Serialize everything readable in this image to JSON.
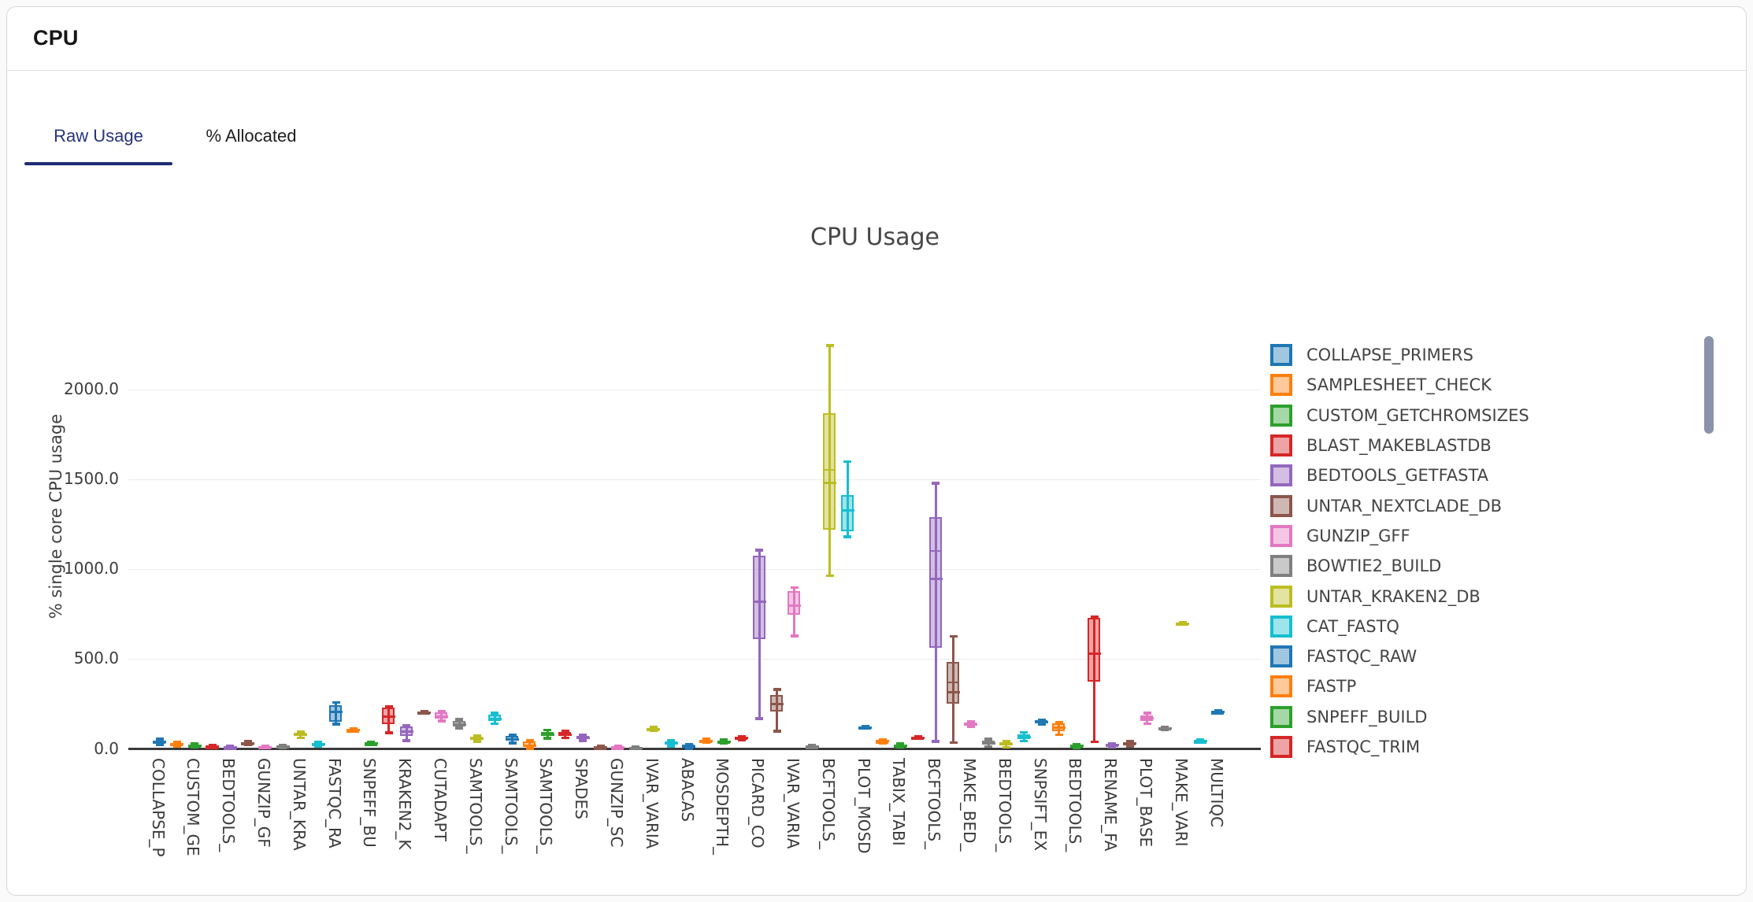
{
  "header": {
    "title": "CPU"
  },
  "tabs": [
    {
      "label": "Raw Usage",
      "active": true
    },
    {
      "label": "% Allocated",
      "active": false
    }
  ],
  "palette": {
    "blue": "#1f77b4",
    "orange": "#ff7f0e",
    "green": "#2ca02c",
    "red": "#d62728",
    "purple": "#9467bd",
    "brown": "#8c564b",
    "pink": "#e377c2",
    "gray": "#7f7f7f",
    "olive": "#bcbd22",
    "cyan": "#17becf"
  },
  "scrollbar_color": "#8a93ab",
  "chart_data": {
    "type": "boxplot",
    "title": "CPU Usage",
    "ylabel": "% single core CPU usage",
    "yticks": [
      {
        "value": 0,
        "label": "0.0"
      },
      {
        "value": 500,
        "label": "500.0"
      },
      {
        "value": 1000,
        "label": "1000.0"
      },
      {
        "value": 1500,
        "label": "1500.0"
      },
      {
        "value": 2000,
        "label": "2000.0"
      }
    ],
    "ylim": [
      0,
      2330
    ],
    "grid": true,
    "legend_position": "right",
    "x_labels": [
      "COLLAPSE_P",
      "CUSTOM_GE",
      "BEDTOOLS_",
      "GUNZIP_GF",
      "UNTAR_KRA",
      "FASTQC_RA",
      "SNPEFF_BU",
      "KRAKEN2_K",
      "CUTADAPT",
      "SAMTOOLS_",
      "SAMTOOLS_",
      "SAMTOOLS_",
      "SPADES",
      "GUNZIP_SC",
      "IVAR_VARIA",
      "ABACAS",
      "MOSDEPTH_",
      "PICARD_CO",
      "IVAR_VARIA",
      "BCFTOOLS_",
      "PLOT_MOSD",
      "TABIX_TABI",
      "BCFTOOLS_",
      "MAKE_BED_",
      "BEDTOOLS_",
      "SNPSIFT_EX",
      "BEDTOOLS_",
      "RENAME_FA",
      "PLOT_BASE",
      "MAKE_VARI",
      "MULTIQC"
    ],
    "boxes": [
      {
        "color": "blue",
        "low": 22,
        "q1": 33,
        "median": 40,
        "q3": 48,
        "high": 55
      },
      {
        "color": "orange",
        "low": 13,
        "q1": 20,
        "median": 26,
        "q3": 33,
        "high": 40
      },
      {
        "color": "green",
        "low": 8,
        "q1": 13,
        "median": 19,
        "q3": 25,
        "high": 30
      },
      {
        "color": "red",
        "low": 4,
        "q1": 8,
        "median": 12,
        "q3": 16,
        "high": 20
      },
      {
        "color": "purple",
        "low": 2,
        "q1": 5,
        "median": 9,
        "q3": 13,
        "high": 16
      },
      {
        "color": "brown",
        "low": 20,
        "q1": 26,
        "median": 32,
        "q3": 38,
        "high": 44
      },
      {
        "color": "pink",
        "low": 3,
        "q1": 6,
        "median": 10,
        "q3": 14,
        "high": 18
      },
      {
        "color": "gray",
        "low": 6,
        "q1": 10,
        "median": 15,
        "q3": 20,
        "high": 24
      },
      {
        "color": "olive",
        "low": 61,
        "q1": 70,
        "median": 79,
        "q3": 88,
        "high": 96
      },
      {
        "color": "cyan",
        "low": 13,
        "q1": 20,
        "median": 26,
        "q3": 33,
        "high": 40
      },
      {
        "color": "blue",
        "low": 136,
        "q1": 145,
        "median": 206,
        "q3": 241,
        "high": 259
      },
      {
        "color": "orange",
        "low": 99,
        "q1": 102,
        "median": 106,
        "q3": 109,
        "high": 112
      },
      {
        "color": "green",
        "low": 25,
        "q1": 28,
        "median": 31,
        "q3": 35,
        "high": 38
      },
      {
        "color": "red",
        "low": 88,
        "q1": 132,
        "median": 180,
        "q3": 228,
        "high": 237
      },
      {
        "color": "purple",
        "low": 44,
        "q1": 66,
        "median": 95,
        "q3": 123,
        "high": 130
      },
      {
        "color": "brown",
        "low": 195,
        "q1": 199,
        "median": 203,
        "q3": 207,
        "high": 211
      },
      {
        "color": "pink",
        "low": 154,
        "q1": 162,
        "median": 180,
        "q3": 202,
        "high": 210
      },
      {
        "color": "gray",
        "low": 114,
        "q1": 122,
        "median": 136,
        "q3": 155,
        "high": 165
      },
      {
        "color": "olive",
        "low": 40,
        "q1": 45,
        "median": 55,
        "q3": 68,
        "high": 75
      },
      {
        "color": "cyan",
        "low": 140,
        "q1": 150,
        "median": 166,
        "q3": 190,
        "high": 200
      },
      {
        "color": "blue",
        "low": 31,
        "q1": 40,
        "median": 53,
        "q3": 72,
        "high": 80
      },
      {
        "color": "orange",
        "low": 2,
        "q1": 6,
        "median": 19,
        "q3": 40,
        "high": 50
      },
      {
        "color": "green",
        "low": 58,
        "q1": 66,
        "median": 80,
        "q3": 95,
        "high": 107
      },
      {
        "color": "red",
        "low": 60,
        "q1": 66,
        "median": 77,
        "q3": 92,
        "high": 100
      },
      {
        "color": "purple",
        "low": 45,
        "q1": 50,
        "median": 63,
        "q3": 74,
        "high": 80
      },
      {
        "color": "brown",
        "low": 4,
        "q1": 7,
        "median": 10,
        "q3": 13,
        "high": 16
      },
      {
        "color": "pink",
        "low": 4,
        "q1": 7,
        "median": 10,
        "q3": 13,
        "high": 16
      },
      {
        "color": "gray",
        "low": 2,
        "q1": 4,
        "median": 6,
        "q3": 9,
        "high": 12
      },
      {
        "color": "olive",
        "low": 100,
        "q1": 105,
        "median": 111,
        "q3": 117,
        "high": 122
      },
      {
        "color": "cyan",
        "low": 15,
        "q1": 22,
        "median": 32,
        "q3": 42,
        "high": 50
      },
      {
        "color": "blue",
        "low": 1,
        "q1": 6,
        "median": 14,
        "q3": 22,
        "high": 28
      },
      {
        "color": "orange",
        "low": 35,
        "q1": 40,
        "median": 45,
        "q3": 52,
        "high": 58
      },
      {
        "color": "green",
        "low": 30,
        "q1": 35,
        "median": 41,
        "q3": 47,
        "high": 52
      },
      {
        "color": "red",
        "low": 48,
        "q1": 53,
        "median": 60,
        "q3": 67,
        "high": 72
      },
      {
        "color": "purple",
        "low": 168,
        "q1": 605,
        "median": 817,
        "q3": 1077,
        "high": 1106
      },
      {
        "color": "brown",
        "low": 98,
        "q1": 205,
        "median": 250,
        "q3": 298,
        "high": 332
      },
      {
        "color": "pink",
        "low": 627,
        "q1": 744,
        "median": 795,
        "q3": 876,
        "high": 898
      },
      {
        "color": "gray",
        "low": 4,
        "q1": 7,
        "median": 11,
        "q3": 16,
        "high": 20
      },
      {
        "color": "olive",
        "low": 962,
        "q1": 1215,
        "median": 1481,
        "q3": 1866,
        "high": 2245,
        "mean": 1551
      },
      {
        "color": "cyan",
        "low": 1180,
        "q1": 1205,
        "median": 1328,
        "q3": 1412,
        "high": 1600
      },
      {
        "color": "blue",
        "low": 112,
        "q1": 116,
        "median": 120,
        "q3": 124,
        "high": 128
      },
      {
        "color": "orange",
        "low": 30,
        "q1": 36,
        "median": 42,
        "q3": 48,
        "high": 54
      },
      {
        "color": "green",
        "low": 8,
        "q1": 13,
        "median": 19,
        "q3": 25,
        "high": 32
      },
      {
        "color": "red",
        "low": 55,
        "q1": 58,
        "median": 62,
        "q3": 66,
        "high": 70
      },
      {
        "color": "purple",
        "low": 40,
        "q1": 560,
        "median": 945,
        "q3": 1288,
        "high": 1478,
        "mean": 1100
      },
      {
        "color": "brown",
        "low": 35,
        "q1": 246,
        "median": 316,
        "q3": 482,
        "high": 627,
        "mean": 368
      },
      {
        "color": "pink",
        "low": 122,
        "q1": 128,
        "median": 136,
        "q3": 145,
        "high": 152
      },
      {
        "color": "gray",
        "low": 12,
        "q1": 20,
        "median": 30,
        "q3": 44,
        "high": 55
      },
      {
        "color": "olive",
        "low": 8,
        "q1": 15,
        "median": 25,
        "q3": 36,
        "high": 45
      },
      {
        "color": "cyan",
        "low": 43,
        "q1": 52,
        "median": 65,
        "q3": 80,
        "high": 92
      },
      {
        "color": "blue",
        "low": 136,
        "q1": 142,
        "median": 150,
        "q3": 158,
        "high": 164
      },
      {
        "color": "orange",
        "low": 77,
        "q1": 95,
        "median": 120,
        "q3": 143,
        "high": 149
      },
      {
        "color": "green",
        "low": 5,
        "q1": 10,
        "median": 17,
        "q3": 24,
        "high": 28
      },
      {
        "color": "red",
        "low": 39,
        "q1": 368,
        "median": 529,
        "q3": 727,
        "high": 736
      },
      {
        "color": "purple",
        "low": 10,
        "q1": 15,
        "median": 21,
        "q3": 27,
        "high": 32
      },
      {
        "color": "brown",
        "low": 15,
        "q1": 22,
        "median": 30,
        "q3": 38,
        "high": 45
      },
      {
        "color": "pink",
        "low": 139,
        "q1": 152,
        "median": 170,
        "q3": 188,
        "high": 200
      },
      {
        "color": "gray",
        "low": 104,
        "q1": 109,
        "median": 114,
        "q3": 119,
        "high": 124
      },
      {
        "color": "olive",
        "low": 690,
        "q1": 694,
        "median": 698,
        "q3": 702,
        "high": 706
      },
      {
        "color": "cyan",
        "low": 35,
        "q1": 39,
        "median": 43,
        "q3": 47,
        "high": 51
      },
      {
        "color": "blue",
        "low": 197,
        "q1": 201,
        "median": 205,
        "q3": 209,
        "high": 213
      }
    ],
    "legend": [
      {
        "color": "blue",
        "label": "COLLAPSE_PRIMERS"
      },
      {
        "color": "orange",
        "label": "SAMPLESHEET_CHECK"
      },
      {
        "color": "green",
        "label": "CUSTOM_GETCHROMSIZES"
      },
      {
        "color": "red",
        "label": "BLAST_MAKEBLASTDB"
      },
      {
        "color": "purple",
        "label": "BEDTOOLS_GETFASTA"
      },
      {
        "color": "brown",
        "label": "UNTAR_NEXTCLADE_DB"
      },
      {
        "color": "pink",
        "label": "GUNZIP_GFF"
      },
      {
        "color": "gray",
        "label": "BOWTIE2_BUILD"
      },
      {
        "color": "olive",
        "label": "UNTAR_KRAKEN2_DB"
      },
      {
        "color": "cyan",
        "label": "CAT_FASTQ"
      },
      {
        "color": "blue",
        "label": "FASTQC_RAW"
      },
      {
        "color": "orange",
        "label": "FASTP"
      },
      {
        "color": "green",
        "label": "SNPEFF_BUILD"
      },
      {
        "color": "red",
        "label": "FASTQC_TRIM"
      }
    ]
  }
}
